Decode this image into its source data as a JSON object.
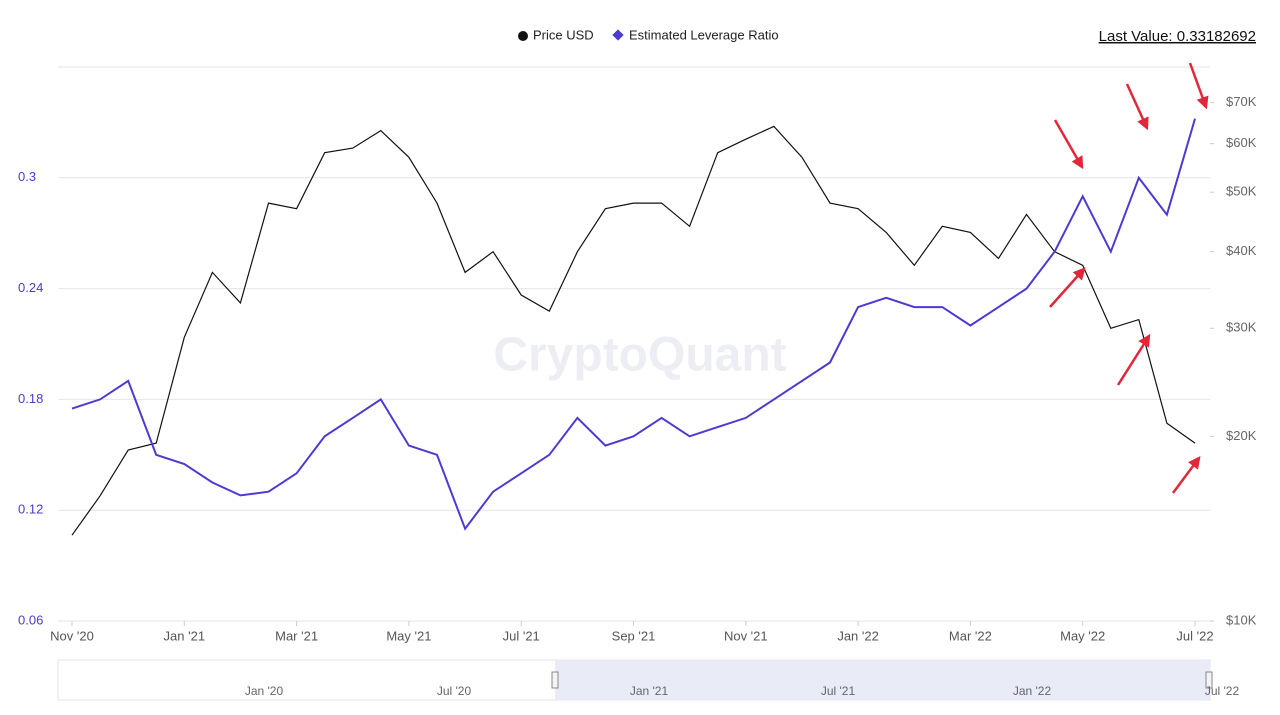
{
  "chart_data": {
    "type": "line",
    "watermark": "CryptoQuant",
    "last_value_label": "Last Value: 0.33182692",
    "categories": [
      "Nov '20",
      null,
      null,
      null,
      "Jan '21",
      null,
      null,
      null,
      "Mar '21",
      null,
      null,
      null,
      "May '21",
      null,
      null,
      null,
      "Jul '21",
      null,
      null,
      null,
      "Sep '21",
      null,
      null,
      null,
      "Nov '21",
      null,
      null,
      null,
      "Jan '22",
      null,
      null,
      null,
      "Mar '22",
      null,
      null,
      null,
      "May '22",
      null,
      null,
      null,
      "Jul '22"
    ],
    "series": [
      {
        "name": "Price USD",
        "color": "#111111",
        "axis": "y2",
        "values": [
          13800,
          16000,
          19000,
          19500,
          29000,
          37000,
          33000,
          48000,
          47000,
          58000,
          59000,
          63000,
          57000,
          48000,
          37000,
          40000,
          34000,
          32000,
          40000,
          47000,
          48000,
          48000,
          44000,
          58000,
          61000,
          64000,
          57000,
          48000,
          47000,
          43000,
          38000,
          44000,
          43000,
          39000,
          46000,
          40000,
          38000,
          30000,
          31000,
          21000,
          19500
        ]
      },
      {
        "name": "Estimated Leverage Ratio",
        "color": "#4b3bd1",
        "values": [
          0.175,
          0.18,
          0.19,
          0.15,
          0.145,
          0.135,
          0.128,
          0.13,
          0.14,
          0.16,
          0.17,
          0.18,
          0.155,
          0.15,
          0.11,
          0.13,
          0.14,
          0.15,
          0.17,
          0.155,
          0.16,
          0.17,
          0.16,
          0.165,
          0.17,
          0.18,
          0.19,
          0.2,
          0.23,
          0.235,
          0.23,
          0.23,
          0.22,
          0.23,
          0.24,
          0.26,
          0.29,
          0.26,
          0.3,
          0.28,
          0.332
        ]
      }
    ],
    "ylim": [
      0.06,
      0.36
    ],
    "yticks": [
      0.06,
      0.12,
      0.18,
      0.24,
      0.3
    ],
    "y2lim": [
      10000,
      80000
    ],
    "y2log": true,
    "y2ticks": [
      {
        "value": 10000,
        "label": "$10K"
      },
      {
        "value": 20000,
        "label": "$20K"
      },
      {
        "value": 30000,
        "label": "$30K"
      },
      {
        "value": 40000,
        "label": "$40K"
      },
      {
        "value": 50000,
        "label": "$50K"
      },
      {
        "value": 60000,
        "label": "$60K"
      },
      {
        "value": 70000,
        "label": "$70K"
      }
    ],
    "grid": true,
    "navigator": {
      "labels": [
        "Jan '20",
        "Jul '20",
        "Jan '21",
        "Jul '21",
        "Jan '22",
        "Jul '22"
      ]
    }
  }
}
